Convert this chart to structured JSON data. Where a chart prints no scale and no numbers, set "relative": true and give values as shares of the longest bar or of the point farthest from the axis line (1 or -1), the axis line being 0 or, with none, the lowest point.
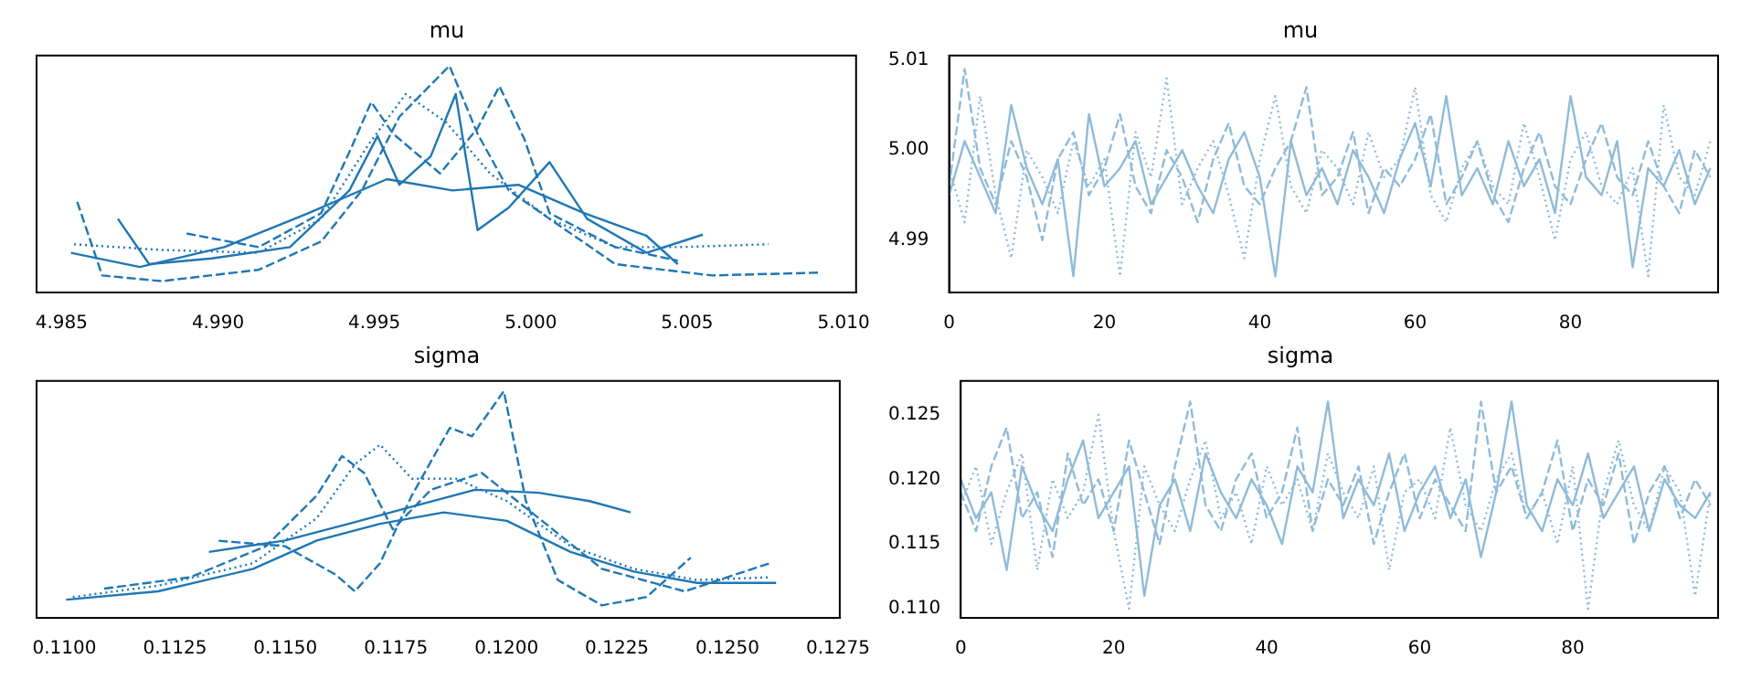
{
  "chart_data": [
    {
      "type": "line",
      "title": "mu",
      "relative": true,
      "tick_labels": "x",
      "marker": "none",
      "xlim": [
        4.9842,
        5.0104
      ],
      "xticks": [
        4.985,
        {
          "value": 4.99,
          "label": "4.990"
        },
        4.995,
        {
          "value": 5.0,
          "label": "5.000"
        },
        5.005,
        {
          "value": 5.01,
          "label": "5.010"
        }
      ],
      "series": [
        {
          "color": "#1f77b4",
          "line_style": "dashed",
          "x": [
            4.9855,
            4.9863,
            4.9882,
            4.9913,
            4.9933,
            4.9946,
            4.9958,
            4.9974,
            4.9983,
            4.9993,
            5.0006,
            5.0027,
            5.0058,
            5.0092
          ],
          "values": [
            0.4,
            0.075,
            0.05,
            0.1,
            0.225,
            0.45,
            0.775,
            1.0,
            0.7,
            0.45,
            0.325,
            0.125,
            0.075,
            0.0875
          ]
        },
        {
          "color": "#1f77b4",
          "line_style": "dashed",
          "x": [
            4.989,
            4.9913,
            4.9933,
            4.9943,
            4.9949,
            4.9956,
            4.9971,
            4.9983,
            4.999,
            4.9998,
            5.0006,
            5.0027,
            5.0047
          ],
          "values": [
            0.26,
            0.2,
            0.35,
            0.65,
            0.84,
            0.7,
            0.525,
            0.725,
            0.91,
            0.675,
            0.35,
            0.2,
            0.14
          ]
        },
        {
          "color": "#1f77b4",
          "line_style": "solid",
          "x": [
            4.9868,
            4.9878,
            4.9898,
            4.9923,
            4.9942,
            4.9951,
            4.9958,
            4.9968,
            4.9976,
            4.9983,
            4.9993,
            5.0006,
            5.0018,
            5.0037,
            5.0055
          ],
          "values": [
            0.325,
            0.125,
            0.15,
            0.2,
            0.45,
            0.69,
            0.475,
            0.6,
            0.875,
            0.275,
            0.375,
            0.575,
            0.325,
            0.175,
            0.255
          ]
        },
        {
          "color": "#1f77b4",
          "line_style": "dotted",
          "x": [
            4.9854,
            4.9882,
            4.9913,
            4.9933,
            4.9948,
            4.996,
            4.9973,
            4.9987,
            5.0006,
            5.0027,
            5.0047,
            5.0076
          ],
          "values": [
            0.2125,
            0.1875,
            0.175,
            0.325,
            0.65,
            0.875,
            0.75,
            0.525,
            0.325,
            0.2,
            0.2,
            0.2125
          ]
        },
        {
          "color": "#1f77b4",
          "line_style": "solid",
          "x": [
            4.9853,
            4.9875,
            4.9902,
            4.9929,
            4.9954,
            4.9975,
            4.9996,
            5.0017,
            5.0037,
            5.0047
          ],
          "values": [
            0.175,
            0.1125,
            0.2,
            0.35,
            0.5,
            0.45,
            0.475,
            0.35,
            0.25,
            0.125
          ]
        }
      ]
    },
    {
      "type": "line",
      "title": "mu",
      "marker": "none",
      "xlim": [
        0,
        99
      ],
      "xticks": [
        0,
        20,
        40,
        60,
        80
      ],
      "ylim": [
        4.9842,
        5.0105
      ],
      "yticks": [
        4.99,
        {
          "value": 5.0,
          "label": "5.00"
        },
        5.01
      ],
      "x": [
        0,
        2,
        4,
        6,
        8,
        10,
        12,
        14,
        16,
        18,
        20,
        22,
        24,
        26,
        28,
        30,
        32,
        34,
        36,
        38,
        40,
        42,
        44,
        46,
        48,
        50,
        52,
        54,
        56,
        58,
        60,
        62,
        64,
        66,
        68,
        70,
        72,
        74,
        76,
        78,
        80,
        82,
        84,
        86,
        88,
        90,
        92,
        94,
        96,
        98
      ],
      "series": [
        {
          "color": "#8fbbd9",
          "line_style": "dashed",
          "values": [
            4.996,
            5.009,
            4.998,
            4.994,
            5.001,
            4.997,
            4.99,
            4.999,
            5.002,
            4.995,
            4.998,
            5.004,
            4.996,
            4.993,
            5.0,
            4.997,
            4.992,
            4.999,
            5.003,
            4.996,
            4.994,
            4.998,
            5.001,
            5.007,
            4.995,
            4.997,
            5.002,
            4.993,
            4.998,
            4.996,
            4.999,
            5.004,
            4.994,
            4.997,
            5.001,
            4.995,
            4.992,
            4.998,
            5.002,
            4.996,
            4.994,
            4.999,
            5.003,
            4.997,
            4.995,
            5.001,
            4.996,
            4.993,
            5.0,
            4.997
          ]
        },
        {
          "color": "#8fbbd9",
          "line_style": "dotted",
          "values": [
            4.998,
            4.992,
            5.006,
            4.995,
            4.988,
            5.0,
            4.997,
            4.993,
            5.001,
            4.996,
            4.999,
            4.986,
            5.002,
            4.997,
            5.008,
            4.994,
            4.998,
            5.001,
            4.995,
            4.988,
            4.999,
            5.006,
            4.996,
            4.993,
            5.0,
            4.998,
            4.994,
            5.002,
            4.997,
            4.999,
            5.007,
            4.995,
            4.992,
            4.998,
            5.001,
            4.996,
            4.994,
            5.003,
            4.997,
            4.99,
            4.999,
            5.002,
            4.996,
            4.994,
            4.998,
            4.986,
            5.005,
            4.997,
            4.995,
            5.001
          ]
        },
        {
          "color": "#8fbbd9",
          "line_style": "solid",
          "values": [
            4.995,
            5.001,
            4.997,
            4.993,
            5.005,
            4.998,
            4.994,
            4.999,
            4.986,
            5.004,
            4.996,
            4.998,
            5.001,
            4.994,
            4.997,
            5.0,
            4.996,
            4.993,
            4.999,
            5.002,
            4.997,
            4.986,
            5.001,
            4.995,
            4.998,
            4.994,
            5.0,
            4.997,
            4.993,
            4.999,
            5.003,
            4.996,
            5.006,
            4.995,
            4.998,
            4.994,
            5.001,
            4.996,
            4.999,
            4.993,
            5.006,
            4.997,
            4.995,
            5.001,
            4.987,
            4.998,
            4.996,
            5.0,
            4.994,
            4.998
          ]
        }
      ]
    },
    {
      "type": "line",
      "title": "sigma",
      "relative": true,
      "tick_labels": "x",
      "marker": "none",
      "xlim": [
        0.10937,
        0.12754
      ],
      "xticks": [
        {
          "value": 0.11,
          "label": "0.1100"
        },
        0.1125,
        {
          "value": 0.115,
          "label": "0.1150"
        },
        0.1175,
        {
          "value": 0.12,
          "label": "0.1200"
        },
        0.1225,
        {
          "value": 0.125,
          "label": "0.1250"
        },
        0.1275
      ],
      "series": [
        {
          "color": "#1f77b4",
          "line_style": "dashed",
          "x": [
            0.11349,
            0.11499,
            0.11614,
            0.11657,
            0.11714,
            0.11786,
            0.11872,
            0.11922,
            0.11994,
            0.12044,
            0.12116,
            0.12216,
            0.12317,
            0.12417
          ],
          "values": [
            0.34,
            0.316,
            0.19,
            0.117,
            0.241,
            0.54,
            0.838,
            0.801,
            1.0,
            0.515,
            0.167,
            0.055,
            0.092,
            0.266
          ]
        },
        {
          "color": "#1f77b4",
          "line_style": "dotted",
          "x": [
            0.11019,
            0.11212,
            0.11427,
            0.11571,
            0.11657,
            0.11714,
            0.11786,
            0.11886,
            0.12001,
            0.12145,
            0.12288,
            0.12431,
            0.12596
          ],
          "values": [
            0.092,
            0.142,
            0.241,
            0.44,
            0.677,
            0.764,
            0.614,
            0.614,
            0.515,
            0.316,
            0.216,
            0.167,
            0.179
          ]
        },
        {
          "color": "#1f77b4",
          "line_style": "dashed",
          "x": [
            0.1109,
            0.11284,
            0.11456,
            0.11571,
            0.11628,
            0.11678,
            0.11743,
            0.11829,
            0.11944,
            0.12073,
            0.12216,
            0.12403,
            0.12596
          ],
          "values": [
            0.129,
            0.179,
            0.316,
            0.54,
            0.714,
            0.639,
            0.39,
            0.565,
            0.639,
            0.44,
            0.216,
            0.117,
            0.241
          ]
        },
        {
          "color": "#1f77b4",
          "line_style": "solid",
          "x": [
            0.11327,
            0.11499,
            0.11643,
            0.11786,
            0.11929,
            0.12073,
            0.12188,
            0.12281
          ],
          "values": [
            0.291,
            0.341,
            0.415,
            0.49,
            0.565,
            0.552,
            0.515,
            0.465
          ]
        },
        {
          "color": "#1f77b4",
          "line_style": "solid",
          "x": [
            0.11004,
            0.11212,
            0.11427,
            0.11571,
            0.11714,
            0.11858,
            0.12001,
            0.12145,
            0.12288,
            0.12431,
            0.1261
          ],
          "values": [
            0.08,
            0.117,
            0.216,
            0.341,
            0.415,
            0.465,
            0.428,
            0.291,
            0.204,
            0.154,
            0.154
          ]
        }
      ]
    },
    {
      "type": "line",
      "title": "sigma",
      "marker": "none",
      "xlim": [
        0,
        99
      ],
      "xticks": [
        0,
        20,
        40,
        60,
        80
      ],
      "ylim": [
        0.1093,
        0.1276
      ],
      "yticks": [
        {
          "value": 0.11,
          "label": "0.110"
        },
        0.115,
        {
          "value": 0.12,
          "label": "0.120"
        },
        0.125
      ],
      "x": [
        0,
        2,
        4,
        6,
        8,
        10,
        12,
        14,
        16,
        18,
        20,
        22,
        24,
        26,
        28,
        30,
        32,
        34,
        36,
        38,
        40,
        42,
        44,
        46,
        48,
        50,
        52,
        54,
        56,
        58,
        60,
        62,
        64,
        66,
        68,
        70,
        72,
        74,
        76,
        78,
        80,
        82,
        84,
        86,
        88,
        90,
        92,
        94,
        96,
        98
      ],
      "series": [
        {
          "color": "#8fbbd9",
          "line_style": "dashed",
          "values": [
            0.119,
            0.116,
            0.121,
            0.124,
            0.117,
            0.119,
            0.114,
            0.122,
            0.118,
            0.12,
            0.116,
            0.123,
            0.119,
            0.115,
            0.121,
            0.126,
            0.118,
            0.116,
            0.12,
            0.122,
            0.117,
            0.119,
            0.124,
            0.116,
            0.12,
            0.118,
            0.121,
            0.115,
            0.119,
            0.122,
            0.117,
            0.12,
            0.118,
            0.116,
            0.126,
            0.119,
            0.121,
            0.117,
            0.119,
            0.123,
            0.116,
            0.12,
            0.118,
            0.122,
            0.115,
            0.119,
            0.121,
            0.117,
            0.12,
            0.118
          ]
        },
        {
          "color": "#8fbbd9",
          "line_style": "dotted",
          "values": [
            0.118,
            0.121,
            0.115,
            0.119,
            0.122,
            0.113,
            0.12,
            0.117,
            0.119,
            0.125,
            0.116,
            0.11,
            0.121,
            0.118,
            0.116,
            0.12,
            0.123,
            0.117,
            0.119,
            0.115,
            0.121,
            0.118,
            0.12,
            0.116,
            0.122,
            0.119,
            0.117,
            0.121,
            0.113,
            0.119,
            0.12,
            0.117,
            0.124,
            0.118,
            0.116,
            0.12,
            0.122,
            0.117,
            0.119,
            0.115,
            0.121,
            0.11,
            0.119,
            0.123,
            0.118,
            0.116,
            0.121,
            0.119,
            0.111,
            0.119
          ]
        },
        {
          "color": "#8fbbd9",
          "line_style": "solid",
          "values": [
            0.12,
            0.117,
            0.119,
            0.113,
            0.121,
            0.118,
            0.116,
            0.12,
            0.123,
            0.117,
            0.119,
            0.121,
            0.111,
            0.118,
            0.12,
            0.116,
            0.122,
            0.119,
            0.117,
            0.12,
            0.118,
            0.115,
            0.121,
            0.119,
            0.126,
            0.117,
            0.12,
            0.118,
            0.122,
            0.116,
            0.119,
            0.121,
            0.117,
            0.12,
            0.114,
            0.119,
            0.126,
            0.118,
            0.116,
            0.12,
            0.118,
            0.122,
            0.117,
            0.119,
            0.121,
            0.116,
            0.12,
            0.118,
            0.117,
            0.119
          ]
        }
      ]
    }
  ]
}
